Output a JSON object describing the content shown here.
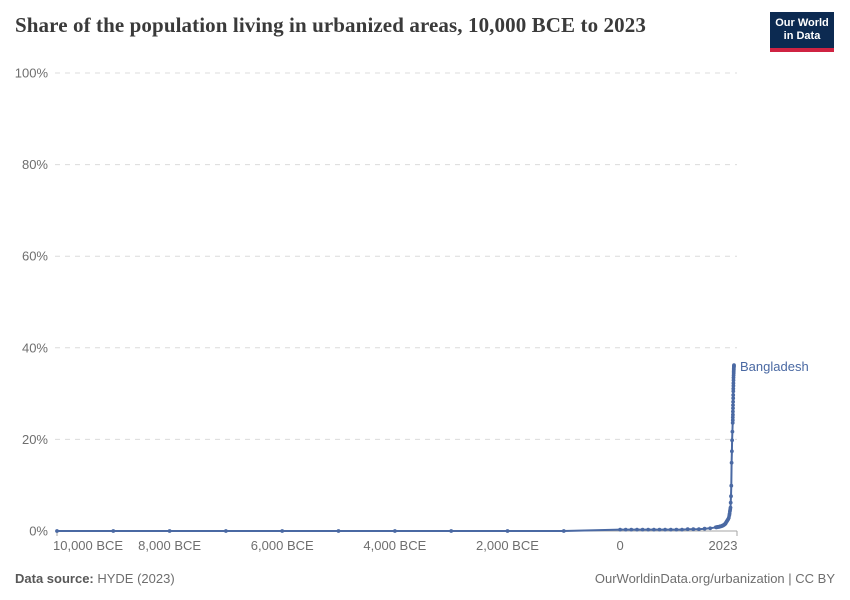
{
  "title": "Share of the population living in urbanized areas, 10,000 BCE to 2023",
  "logo": {
    "line1": "Our World",
    "line2": "in Data",
    "bg_color": "#0c2a51",
    "accent_color": "#cf2342"
  },
  "footer": {
    "source_label": "Data source:",
    "source_value": " HYDE (2023)",
    "right_text": "OurWorldinData.org/urbanization | CC BY"
  },
  "colors": {
    "line": "#4a69a3",
    "grid": "#dcdcdc",
    "axis": "#a6a6a6",
    "tick_text": "#6e6e6e",
    "title_text": "#3a3a3a"
  },
  "chart_data": {
    "type": "line",
    "title": "Share of the population living in urbanized areas, 10,000 BCE to 2023",
    "xlabel": "",
    "ylabel": "",
    "xlim": [
      -10000,
      2023
    ],
    "ylim": [
      0,
      100
    ],
    "grid": "horizontal-dashed",
    "legend": "end-of-line-label",
    "yticks": [
      {
        "value": 0,
        "label": "0%"
      },
      {
        "value": 20,
        "label": "20%"
      },
      {
        "value": 40,
        "label": "40%"
      },
      {
        "value": 60,
        "label": "60%"
      },
      {
        "value": 80,
        "label": "80%"
      },
      {
        "value": 100,
        "label": "100%"
      }
    ],
    "xticks": [
      {
        "value": -10000,
        "label": "10,000 BCE"
      },
      {
        "value": -8000,
        "label": "8,000 BCE"
      },
      {
        "value": -6000,
        "label": "6,000 BCE"
      },
      {
        "value": -4000,
        "label": "4,000 BCE"
      },
      {
        "value": -2000,
        "label": "2,000 BCE"
      },
      {
        "value": 0,
        "label": "0"
      },
      {
        "value": 2023,
        "label": "2023"
      }
    ],
    "series": [
      {
        "name": "Bangladesh",
        "color": "#4a69a3",
        "points": [
          [
            -10000,
            0
          ],
          [
            -9000,
            0
          ],
          [
            -8000,
            0
          ],
          [
            -7000,
            0
          ],
          [
            -6000,
            0
          ],
          [
            -5000,
            0
          ],
          [
            -4000,
            0
          ],
          [
            -3000,
            0
          ],
          [
            -2000,
            0
          ],
          [
            -1000,
            0
          ],
          [
            0,
            0.3
          ],
          [
            100,
            0.3
          ],
          [
            200,
            0.3
          ],
          [
            300,
            0.3
          ],
          [
            400,
            0.3
          ],
          [
            500,
            0.3
          ],
          [
            600,
            0.3
          ],
          [
            700,
            0.3
          ],
          [
            800,
            0.3
          ],
          [
            900,
            0.3
          ],
          [
            1000,
            0.3
          ],
          [
            1100,
            0.3
          ],
          [
            1200,
            0.4
          ],
          [
            1300,
            0.4
          ],
          [
            1400,
            0.4
          ],
          [
            1500,
            0.5
          ],
          [
            1600,
            0.6
          ],
          [
            1700,
            0.8
          ],
          [
            1710,
            0.8
          ],
          [
            1720,
            0.8
          ],
          [
            1730,
            0.9
          ],
          [
            1740,
            0.9
          ],
          [
            1750,
            0.9
          ],
          [
            1760,
            0.9
          ],
          [
            1770,
            1.0
          ],
          [
            1780,
            1.0
          ],
          [
            1790,
            1.0
          ],
          [
            1800,
            1.1
          ],
          [
            1810,
            1.1
          ],
          [
            1820,
            1.2
          ],
          [
            1830,
            1.2
          ],
          [
            1840,
            1.3
          ],
          [
            1850,
            1.4
          ],
          [
            1860,
            1.5
          ],
          [
            1870,
            1.6
          ],
          [
            1880,
            1.8
          ],
          [
            1890,
            2.0
          ],
          [
            1900,
            2.2
          ],
          [
            1910,
            2.4
          ],
          [
            1920,
            2.6
          ],
          [
            1930,
            2.9
          ],
          [
            1940,
            3.4
          ],
          [
            1945,
            3.8
          ],
          [
            1950,
            4.3
          ],
          [
            1955,
            4.7
          ],
          [
            1960,
            5.1
          ],
          [
            1965,
            6.2
          ],
          [
            1970,
            7.6
          ],
          [
            1975,
            9.9
          ],
          [
            1980,
            14.9
          ],
          [
            1985,
            17.4
          ],
          [
            1990,
            19.8
          ],
          [
            1995,
            21.7
          ],
          [
            2000,
            23.6
          ],
          [
            2001,
            24.2
          ],
          [
            2002,
            24.8
          ],
          [
            2003,
            25.4
          ],
          [
            2004,
            26.1
          ],
          [
            2005,
            26.8
          ],
          [
            2006,
            27.5
          ],
          [
            2007,
            28.2
          ],
          [
            2008,
            29.0
          ],
          [
            2009,
            29.7
          ],
          [
            2010,
            30.5
          ],
          [
            2011,
            31.1
          ],
          [
            2012,
            31.7
          ],
          [
            2013,
            32.3
          ],
          [
            2014,
            32.9
          ],
          [
            2015,
            33.5
          ],
          [
            2016,
            34.0
          ],
          [
            2017,
            34.5
          ],
          [
            2018,
            34.9
          ],
          [
            2019,
            35.2
          ],
          [
            2020,
            35.5
          ],
          [
            2021,
            35.8
          ],
          [
            2022,
            36.0
          ],
          [
            2023,
            36.2
          ]
        ]
      }
    ]
  }
}
